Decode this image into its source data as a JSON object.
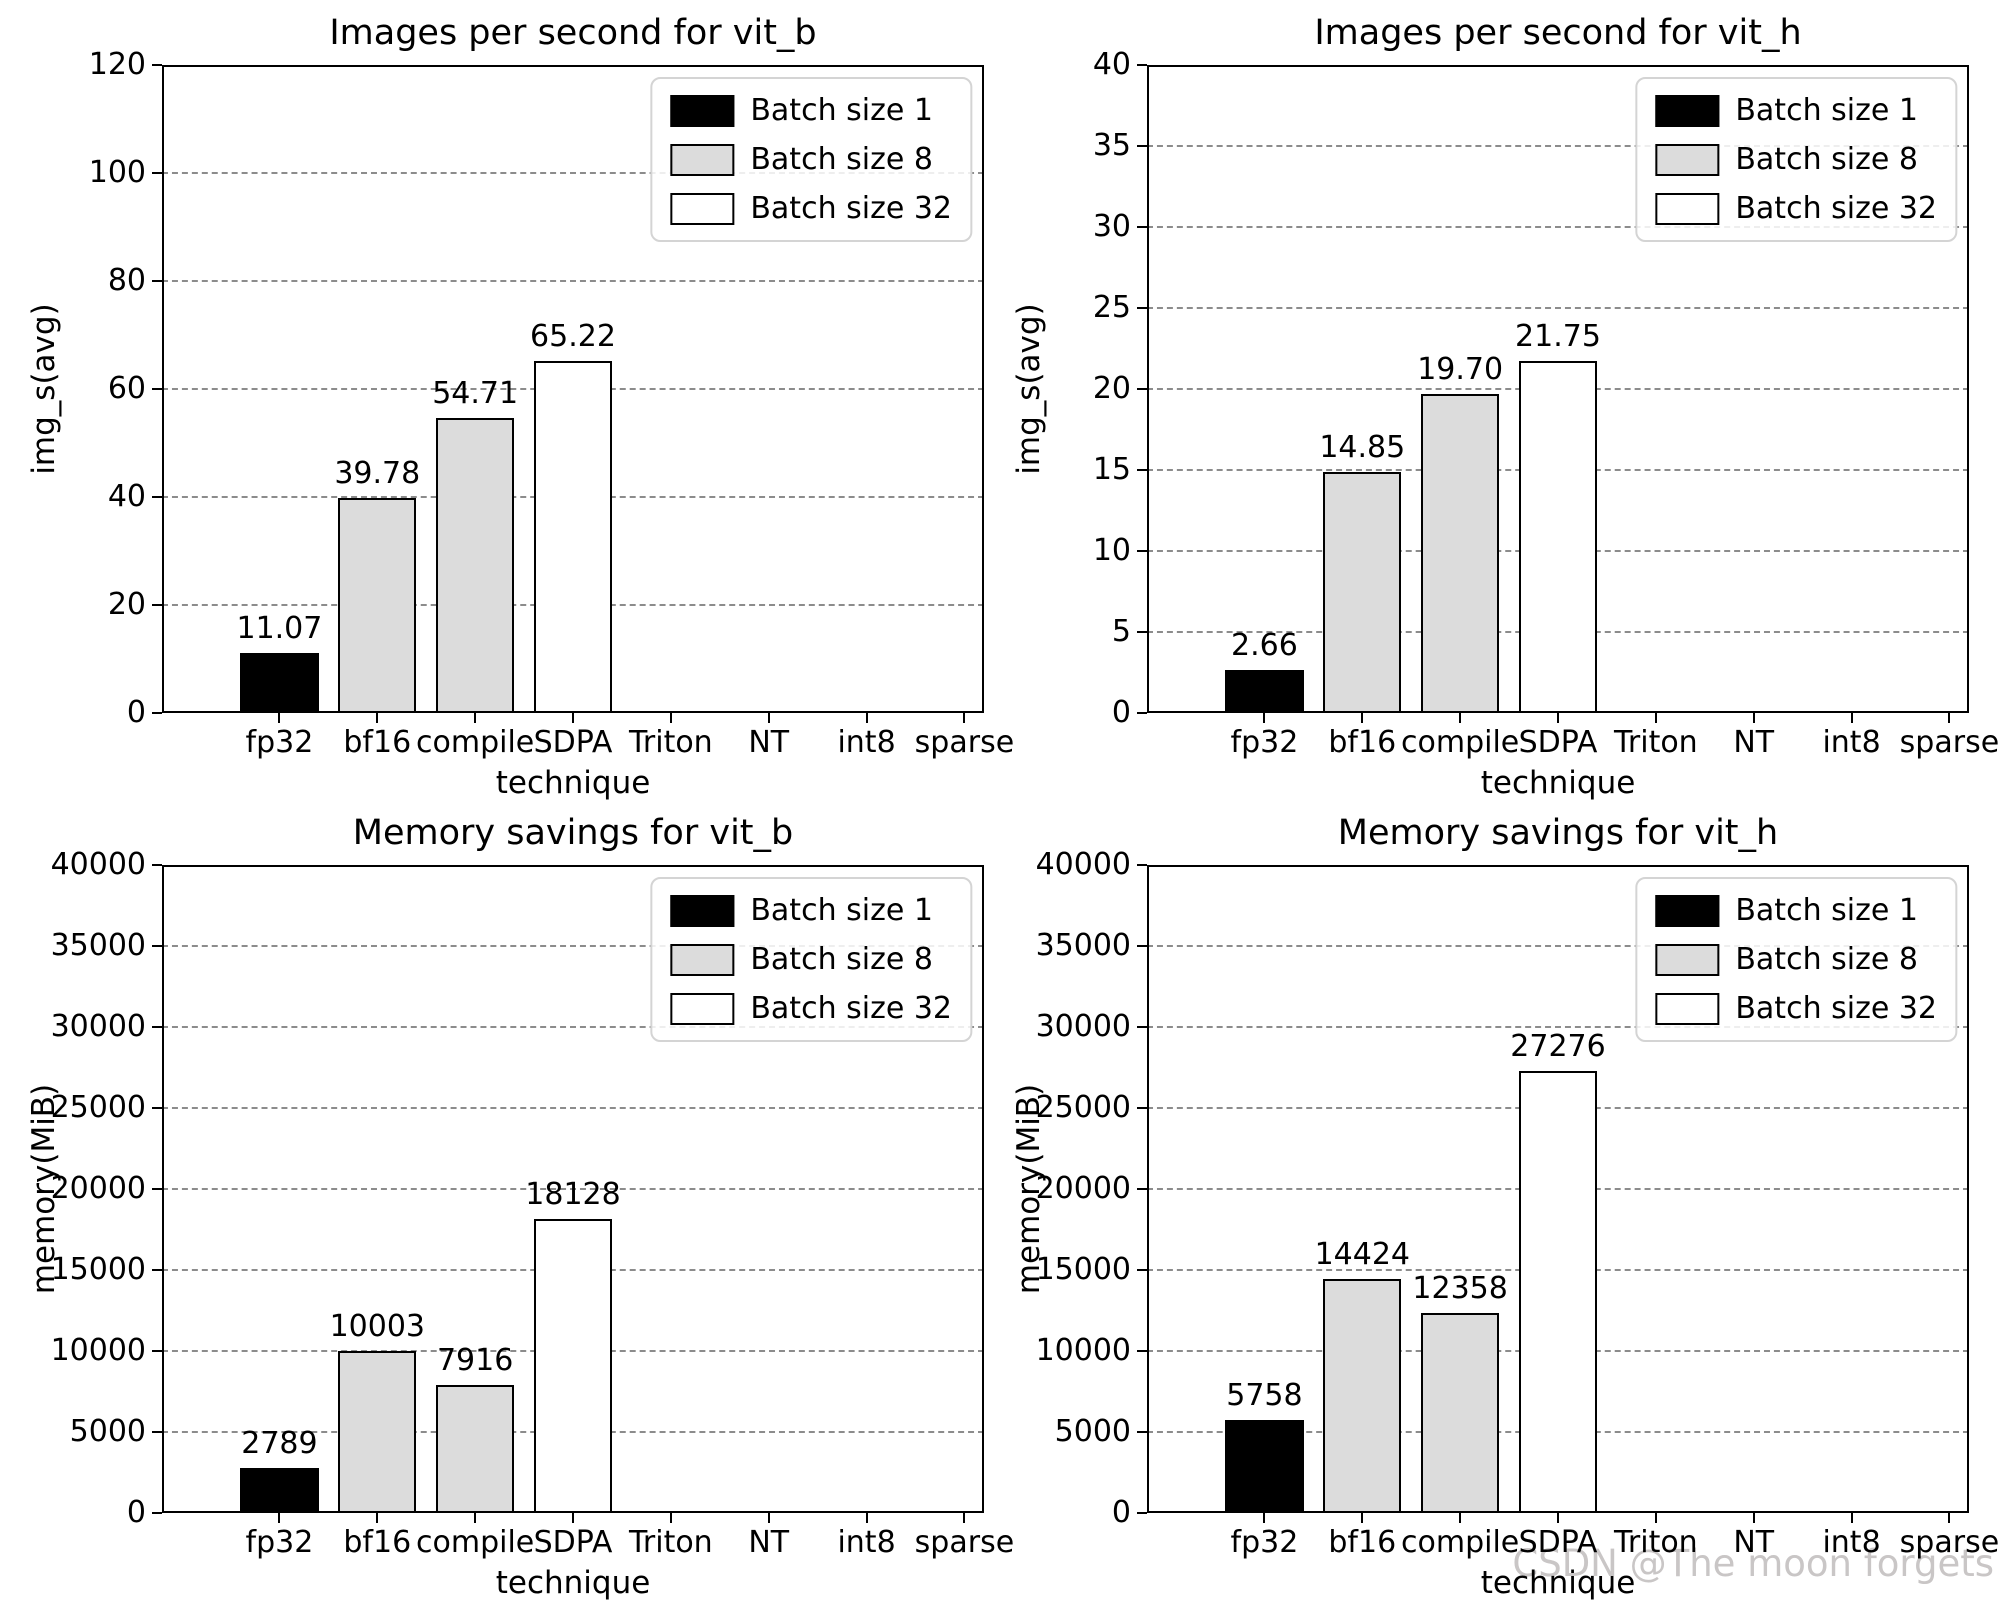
{
  "watermark": {
    "text": "CSDN @The moon forgets",
    "color": "#c9c6c6"
  },
  "legend_items": [
    {
      "label": "Batch size 1",
      "color": "#000000"
    },
    {
      "label": "Batch size 8",
      "color": "#dcdcdc"
    },
    {
      "label": "Batch size 32",
      "color": "#ffffff"
    }
  ],
  "style": {
    "grid_color": "#8c8c8c",
    "bar_edge_color": "#000000",
    "axis_color": "#000000"
  },
  "chart_data": [
    {
      "type": "bar",
      "title": "Images per second for vit_b",
      "xlabel": "technique",
      "ylabel": "img_s(avg)",
      "categories": [
        "fp32",
        "bf16",
        "compile",
        "SDPA",
        "Triton",
        "NT",
        "int8",
        "sparse"
      ],
      "ylim": [
        0,
        120
      ],
      "ytick_step": 20,
      "grid": true,
      "legend_position": "upper right",
      "bars": [
        {
          "category": "fp32",
          "series": "Batch size 1",
          "value": 11.07,
          "label": "11.07"
        },
        {
          "category": "bf16",
          "series": "Batch size 8",
          "value": 39.78,
          "label": "39.78"
        },
        {
          "category": "compile",
          "series": "Batch size 8",
          "value": 54.71,
          "label": "54.71"
        },
        {
          "category": "SDPA",
          "series": "Batch size 32",
          "value": 65.22,
          "label": "65.22"
        }
      ]
    },
    {
      "type": "bar",
      "title": "Images per second for vit_h",
      "xlabel": "technique",
      "ylabel": "img_s(avg)",
      "categories": [
        "fp32",
        "bf16",
        "compile",
        "SDPA",
        "Triton",
        "NT",
        "int8",
        "sparse"
      ],
      "ylim": [
        0,
        40
      ],
      "ytick_step": 5,
      "grid": true,
      "legend_position": "upper right",
      "bars": [
        {
          "category": "fp32",
          "series": "Batch size 1",
          "value": 2.66,
          "label": "2.66"
        },
        {
          "category": "bf16",
          "series": "Batch size 8",
          "value": 14.85,
          "label": "14.85"
        },
        {
          "category": "compile",
          "series": "Batch size 8",
          "value": 19.7,
          "label": "19.70"
        },
        {
          "category": "SDPA",
          "series": "Batch size 32",
          "value": 21.75,
          "label": "21.75"
        }
      ]
    },
    {
      "type": "bar",
      "title": "Memory savings for vit_b",
      "xlabel": "technique",
      "ylabel": "memory(MiB)",
      "categories": [
        "fp32",
        "bf16",
        "compile",
        "SDPA",
        "Triton",
        "NT",
        "int8",
        "sparse"
      ],
      "ylim": [
        0,
        40000
      ],
      "ytick_step": 5000,
      "grid": true,
      "legend_position": "upper right",
      "bars": [
        {
          "category": "fp32",
          "series": "Batch size 1",
          "value": 2789,
          "label": "2789"
        },
        {
          "category": "bf16",
          "series": "Batch size 8",
          "value": 10003,
          "label": "10003"
        },
        {
          "category": "compile",
          "series": "Batch size 8",
          "value": 7916,
          "label": "7916"
        },
        {
          "category": "SDPA",
          "series": "Batch size 32",
          "value": 18128,
          "label": "18128"
        }
      ]
    },
    {
      "type": "bar",
      "title": "Memory savings for vit_h",
      "xlabel": "technique",
      "ylabel": "memory(MiB)",
      "categories": [
        "fp32",
        "bf16",
        "compile",
        "SDPA",
        "Triton",
        "NT",
        "int8",
        "sparse"
      ],
      "ylim": [
        0,
        40000
      ],
      "ytick_step": 5000,
      "grid": true,
      "legend_position": "upper right",
      "bars": [
        {
          "category": "fp32",
          "series": "Batch size 1",
          "value": 5758,
          "label": "5758"
        },
        {
          "category": "bf16",
          "series": "Batch size 8",
          "value": 14424,
          "label": "14424"
        },
        {
          "category": "compile",
          "series": "Batch size 8",
          "value": 12358,
          "label": "12358"
        },
        {
          "category": "SDPA",
          "series": "Batch size 32",
          "value": 27276,
          "label": "27276"
        }
      ]
    }
  ]
}
